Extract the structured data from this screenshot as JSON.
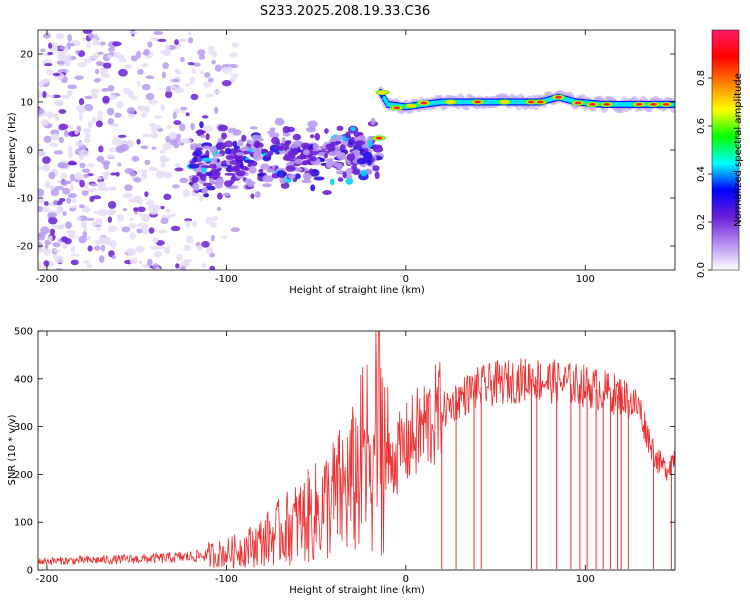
{
  "title": "S233.2025.208.19.33.C36",
  "colors": {
    "snr_line": "#ee3030",
    "frame": "#000000",
    "speckle_light": "#e6dcf7",
    "speckle_mid": "#b89af0",
    "speckle_dark": "#6a1fd6"
  },
  "chart_data": [
    {
      "type": "heatmap",
      "title": "",
      "xlabel": "Height of straight line (km)",
      "ylabel": "Frequency (Hz)",
      "xlim": [
        -205,
        150
      ],
      "ylim": [
        -25,
        25
      ],
      "xticks": [
        -200,
        -100,
        0,
        100
      ],
      "yticks": [
        -20,
        -10,
        0,
        10,
        20
      ],
      "colorbar": {
        "label": "Normalized spectral amplitude",
        "range": [
          0,
          1
        ],
        "ticks": [
          0.0,
          0.2,
          0.4,
          0.6,
          0.8
        ],
        "colormap": [
          "#ffffff",
          "#b48cf0",
          "#6a1fd6",
          "#0000ff",
          "#00ffff",
          "#00ff00",
          "#ffff00",
          "#ff8000",
          "#ff0000",
          "#ff1a66"
        ]
      },
      "features": [
        {
          "name": "broadband noise",
          "x_range": [
            -205,
            -95
          ],
          "y_range": [
            -25,
            25
          ],
          "amplitude": 0.2
        },
        {
          "name": "diffuse signal",
          "x_range": [
            -120,
            -15
          ],
          "y_range": [
            -12,
            5
          ],
          "amplitude": 0.45
        },
        {
          "name": "signal trace",
          "points": [
            [
              -30,
              2
            ],
            [
              -15,
              2.5
            ],
            [
              -14,
              12
            ],
            [
              -10,
              9.5
            ],
            [
              0,
              9
            ],
            [
              20,
              10
            ],
            [
              40,
              10
            ],
            [
              60,
              10
            ],
            [
              75,
              10
            ],
            [
              85,
              11
            ],
            [
              95,
              10
            ],
            [
              110,
              9.5
            ],
            [
              130,
              9.5
            ],
            [
              150,
              9.5
            ]
          ],
          "amplitude": 0.9
        }
      ]
    },
    {
      "type": "line",
      "title": "",
      "xlabel": "Height of straight line (km)",
      "ylabel": "SNR (10 * v/v)",
      "xlim": [
        -205,
        150
      ],
      "ylim": [
        0,
        500
      ],
      "xticks": [
        -200,
        -100,
        0,
        100
      ],
      "yticks": [
        0,
        100,
        200,
        300,
        400,
        500
      ],
      "series": [
        {
          "x": [
            -205,
            -180,
            -160,
            -140,
            -120,
            -100,
            -90,
            -80,
            -70,
            -60,
            -50,
            -40,
            -30,
            -20,
            -15,
            -10,
            0,
            10,
            20,
            30,
            40,
            50,
            60,
            70,
            80,
            90,
            100,
            110,
            120,
            130,
            135,
            140,
            145,
            150
          ],
          "y": [
            18,
            20,
            22,
            24,
            28,
            35,
            45,
            60,
            80,
            100,
            120,
            150,
            180,
            260,
            320,
            220,
            260,
            300,
            330,
            360,
            380,
            390,
            395,
            400,
            395,
            390,
            385,
            375,
            365,
            340,
            280,
            230,
            210,
            240
          ],
          "dropouts": [
            20,
            28,
            38,
            42,
            70,
            73,
            84,
            92,
            97,
            101,
            106,
            110,
            114,
            118,
            120,
            124,
            138,
            148
          ]
        }
      ]
    }
  ]
}
